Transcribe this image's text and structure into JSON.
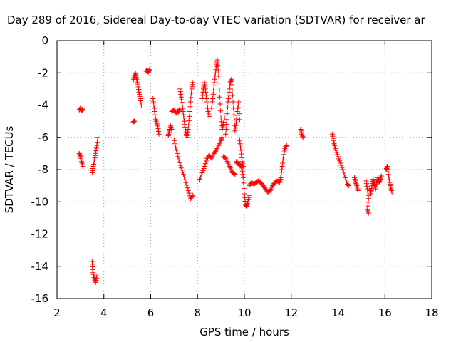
{
  "chart_data": {
    "type": "scatter",
    "title": "Day 289 of 2016, Sidereal Day-to-day VTEC variation (SDTVAR) for receiver ar",
    "xlabel": "GPS time / hours",
    "ylabel": "SDTVAR / TECUs",
    "xlim": [
      2,
      18
    ],
    "ylim": [
      -16,
      0
    ],
    "xticks": [
      "2",
      "4",
      "6",
      "8",
      "10",
      "12",
      "14",
      "16",
      "18"
    ],
    "yticks": [
      "0",
      "-2",
      "-4",
      "-6",
      "-8",
      "-10",
      "-12",
      "-14",
      "-16"
    ],
    "grid": true,
    "marker": "+",
    "color": "#ff0000",
    "series": [
      {
        "name": "SDTVAR",
        "segments": [
          [
            [
              2.95,
              -4.3
            ],
            [
              3.0,
              -4.2
            ],
            [
              3.05,
              -4.35
            ],
            [
              3.1,
              -4.25
            ]
          ],
          [
            [
              2.95,
              -7.0
            ],
            [
              3.0,
              -7.2
            ],
            [
              3.05,
              -7.5
            ],
            [
              3.1,
              -7.8
            ]
          ],
          [
            [
              3.5,
              -8.2
            ],
            [
              3.55,
              -7.8
            ],
            [
              3.6,
              -7.4
            ],
            [
              3.65,
              -7.0
            ],
            [
              3.7,
              -6.5
            ],
            [
              3.75,
              -6.0
            ]
          ],
          [
            [
              3.5,
              -13.7
            ],
            [
              3.52,
              -14.2
            ],
            [
              3.55,
              -14.5
            ],
            [
              3.6,
              -14.8
            ],
            [
              3.65,
              -15.0
            ],
            [
              3.7,
              -14.6
            ]
          ],
          [
            [
              5.25,
              -5.05
            ],
            [
              5.3,
              -5.0
            ]
          ],
          [
            [
              5.25,
              -2.5
            ],
            [
              5.3,
              -2.2
            ],
            [
              5.35,
              -2.0
            ],
            [
              5.4,
              -2.4
            ],
            [
              5.45,
              -2.7
            ],
            [
              5.5,
              -3.2
            ],
            [
              5.55,
              -3.6
            ],
            [
              5.6,
              -4.0
            ]
          ],
          [
            [
              5.8,
              -1.9
            ],
            [
              5.85,
              -1.85
            ],
            [
              5.9,
              -1.95
            ],
            [
              5.95,
              -1.8
            ]
          ],
          [
            [
              6.1,
              -3.6
            ],
            [
              6.15,
              -4.2
            ],
            [
              6.2,
              -4.8
            ],
            [
              6.25,
              -5.1
            ],
            [
              6.3,
              -5.3
            ],
            [
              6.35,
              -5.8
            ]
          ],
          [
            [
              6.75,
              -5.9
            ],
            [
              6.8,
              -5.6
            ],
            [
              6.85,
              -5.3
            ],
            [
              6.9,
              -5.5
            ]
          ],
          [
            [
              6.9,
              -4.4
            ],
            [
              7.0,
              -4.3
            ],
            [
              7.1,
              -4.5
            ],
            [
              7.2,
              -4.4
            ],
            [
              7.25,
              -4.2
            ]
          ],
          [
            [
              7.0,
              -6.2
            ],
            [
              7.1,
              -6.8
            ],
            [
              7.2,
              -7.4
            ],
            [
              7.3,
              -7.9
            ],
            [
              7.4,
              -8.3
            ],
            [
              7.5,
              -8.8
            ],
            [
              7.6,
              -9.3
            ],
            [
              7.7,
              -9.8
            ],
            [
              7.8,
              -9.6
            ]
          ],
          [
            [
              7.25,
              -3.0
            ],
            [
              7.3,
              -3.5
            ],
            [
              7.35,
              -4.0
            ],
            [
              7.4,
              -4.6
            ],
            [
              7.45,
              -5.2
            ],
            [
              7.5,
              -5.7
            ],
            [
              7.55,
              -6.0
            ],
            [
              7.6,
              -5.5
            ],
            [
              7.65,
              -4.7
            ],
            [
              7.7,
              -3.8
            ],
            [
              7.75,
              -3.0
            ],
            [
              7.8,
              -2.6
            ]
          ],
          [
            [
              8.1,
              -8.6
            ],
            [
              8.2,
              -8.2
            ],
            [
              8.3,
              -7.8
            ],
            [
              8.4,
              -7.3
            ],
            [
              8.5,
              -7.1
            ],
            [
              8.6,
              -7.3
            ],
            [
              8.7,
              -7.0
            ],
            [
              8.8,
              -6.8
            ],
            [
              8.9,
              -6.5
            ],
            [
              9.0,
              -6.2
            ],
            [
              9.05,
              -6.0
            ]
          ],
          [
            [
              8.2,
              -3.6
            ],
            [
              8.25,
              -3.0
            ],
            [
              8.3,
              -2.6
            ],
            [
              8.35,
              -3.2
            ],
            [
              8.4,
              -3.8
            ],
            [
              8.45,
              -4.4
            ],
            [
              8.5,
              -4.7
            ]
          ],
          [
            [
              8.6,
              -4.2
            ],
            [
              8.65,
              -3.6
            ],
            [
              8.7,
              -2.8
            ],
            [
              8.75,
              -2.2
            ],
            [
              8.8,
              -1.6
            ],
            [
              8.85,
              -1.2
            ],
            [
              8.9,
              -2.2
            ],
            [
              8.95,
              -3.5
            ],
            [
              9.0,
              -4.8
            ],
            [
              9.05,
              -5.5
            ],
            [
              9.1,
              -5.2
            ],
            [
              9.15,
              -4.8
            ]
          ],
          [
            [
              9.1,
              -7.2
            ],
            [
              9.2,
              -7.3
            ],
            [
              9.3,
              -7.6
            ],
            [
              9.4,
              -7.9
            ],
            [
              9.5,
              -8.2
            ],
            [
              9.6,
              -8.3
            ]
          ],
          [
            [
              9.2,
              -5.8
            ],
            [
              9.25,
              -4.9
            ],
            [
              9.3,
              -3.8
            ],
            [
              9.35,
              -3.2
            ],
            [
              9.4,
              -2.6
            ],
            [
              9.45,
              -2.4
            ],
            [
              9.5,
              -3.4
            ],
            [
              9.55,
              -4.6
            ],
            [
              9.6,
              -5.6
            ],
            [
              9.65,
              -5.1
            ],
            [
              9.7,
              -4.4
            ],
            [
              9.75,
              -3.8
            ],
            [
              9.8,
              -4.9
            ]
          ],
          [
            [
              9.65,
              -7.5
            ],
            [
              9.7,
              -7.6
            ],
            [
              9.8,
              -7.7
            ],
            [
              9.9,
              -7.9
            ],
            [
              9.95,
              -8.5
            ],
            [
              10.0,
              -9.5
            ],
            [
              10.05,
              -10.2
            ],
            [
              10.1,
              -10.3
            ],
            [
              10.15,
              -10.0
            ],
            [
              10.2,
              -9.6
            ]
          ],
          [
            [
              9.8,
              -6.2
            ],
            [
              9.85,
              -6.8
            ],
            [
              9.9,
              -7.5
            ],
            [
              9.95,
              -7.8
            ]
          ],
          [
            [
              10.2,
              -9.0
            ],
            [
              10.3,
              -8.8
            ],
            [
              10.4,
              -8.9
            ],
            [
              10.5,
              -8.8
            ],
            [
              10.6,
              -8.7
            ],
            [
              10.7,
              -8.8
            ],
            [
              10.8,
              -9.0
            ],
            [
              10.9,
              -9.2
            ],
            [
              11.0,
              -9.4
            ],
            [
              11.1,
              -9.3
            ],
            [
              11.2,
              -9.0
            ],
            [
              11.3,
              -8.8
            ],
            [
              11.4,
              -8.7
            ],
            [
              11.5,
              -8.8
            ],
            [
              11.55,
              -8.5
            ],
            [
              11.6,
              -8.0
            ],
            [
              11.65,
              -7.4
            ],
            [
              11.7,
              -6.9
            ],
            [
              11.75,
              -6.6
            ],
            [
              11.8,
              -6.5
            ]
          ],
          [
            [
              12.4,
              -5.5
            ],
            [
              12.45,
              -5.8
            ],
            [
              12.5,
              -6.0
            ]
          ],
          [
            [
              13.75,
              -5.8
            ],
            [
              13.8,
              -6.2
            ],
            [
              13.85,
              -6.5
            ],
            [
              13.9,
              -6.8
            ],
            [
              14.0,
              -7.2
            ],
            [
              14.1,
              -7.6
            ],
            [
              14.2,
              -8.0
            ],
            [
              14.3,
              -8.5
            ],
            [
              14.4,
              -8.9
            ],
            [
              14.45,
              -9.0
            ]
          ],
          [
            [
              14.7,
              -8.5
            ],
            [
              14.75,
              -8.8
            ],
            [
              14.8,
              -9.0
            ],
            [
              14.85,
              -9.3
            ]
          ],
          [
            [
              15.2,
              -8.7
            ],
            [
              15.25,
              -9.2
            ],
            [
              15.3,
              -9.8
            ],
            [
              15.25,
              -10.5
            ],
            [
              15.3,
              -10.7
            ]
          ],
          [
            [
              15.35,
              -9.2
            ],
            [
              15.4,
              -9.5
            ],
            [
              15.45,
              -9.0
            ],
            [
              15.5,
              -8.6
            ],
            [
              15.55,
              -8.9
            ],
            [
              15.6,
              -9.2
            ],
            [
              15.65,
              -8.8
            ],
            [
              15.7,
              -8.5
            ],
            [
              15.75,
              -8.8
            ],
            [
              15.8,
              -8.6
            ],
            [
              15.85,
              -8.4
            ]
          ],
          [
            [
              16.05,
              -8.0
            ],
            [
              16.1,
              -7.8
            ],
            [
              16.15,
              -8.3
            ],
            [
              16.2,
              -8.8
            ],
            [
              16.25,
              -9.1
            ],
            [
              16.3,
              -9.4
            ]
          ]
        ]
      }
    ]
  }
}
